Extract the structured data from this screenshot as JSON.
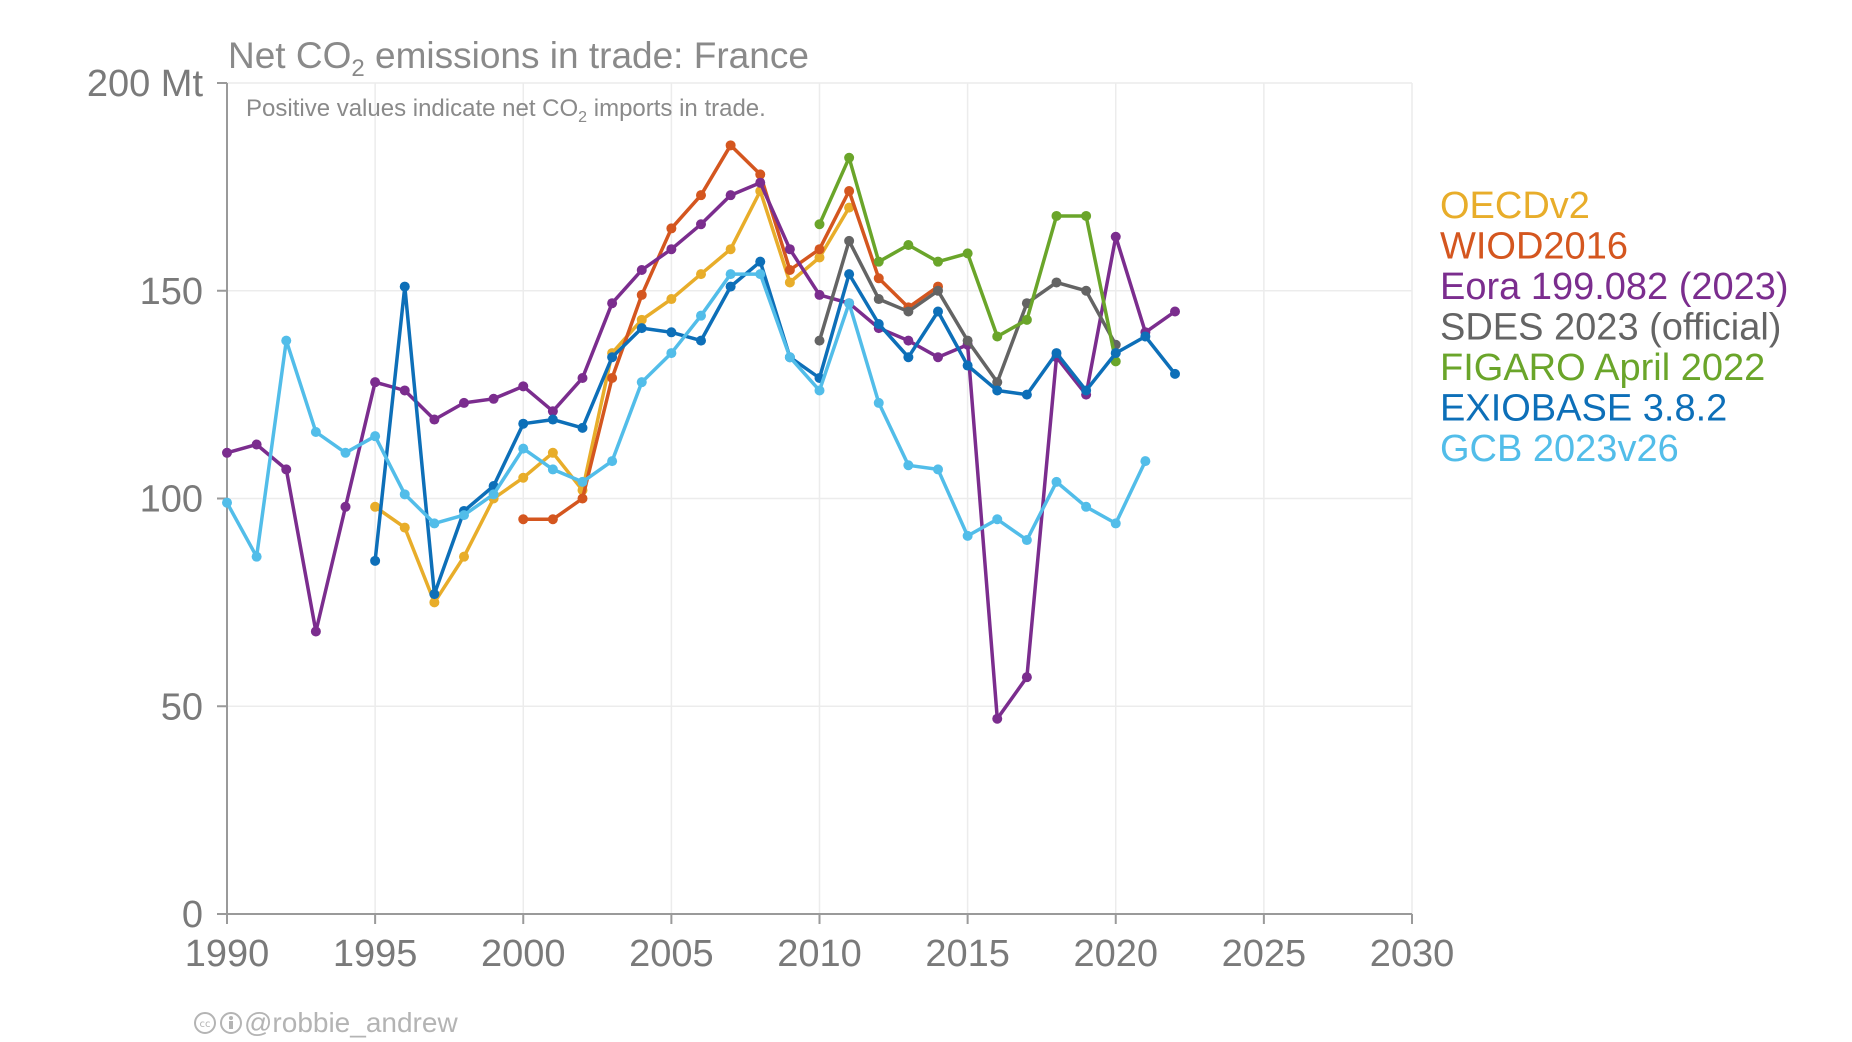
{
  "chart_data": {
    "type": "line",
    "title": "Net CO",
    "title_sub": "2",
    "title_rest": " emissions in trade: France",
    "subtitle": "Positive values indicate net CO",
    "subtitle_sub": "2",
    "subtitle_rest": " imports in trade.",
    "credit": "@robbie_andrew",
    "xlim": [
      1990,
      2030
    ],
    "ylim": [
      0,
      200
    ],
    "grid": true,
    "legend_position": "right",
    "x_ticks": [
      "1990",
      "1995",
      "2000",
      "2005",
      "2010",
      "2015",
      "2020",
      "2025",
      "2030"
    ],
    "y_ticks": [
      "0",
      "50",
      "100",
      "150",
      "200 Mt"
    ],
    "series": [
      {
        "name": "OECDv2",
        "color": "#e8ad2a",
        "x": [
          1995,
          1996,
          1997,
          1998,
          1999,
          2000,
          2001,
          2002,
          2003,
          2004,
          2005,
          2006,
          2007,
          2008,
          2009,
          2010,
          2011
        ],
        "y": [
          98,
          93,
          75,
          86,
          100,
          105,
          111,
          102,
          135,
          143,
          148,
          154,
          160,
          174,
          152,
          158,
          170
        ]
      },
      {
        "name": "WIOD2016",
        "color": "#d4561f",
        "x": [
          2000,
          2001,
          2002,
          2003,
          2004,
          2005,
          2006,
          2007,
          2008,
          2009,
          2010,
          2011,
          2012,
          2013,
          2014
        ],
        "y": [
          95,
          95,
          100,
          129,
          149,
          165,
          173,
          185,
          178,
          155,
          160,
          174,
          153,
          146,
          151
        ]
      },
      {
        "name": "Eora 199.082 (2023)",
        "color": "#7b2d8e",
        "x": [
          1990,
          1991,
          1992,
          1993,
          1994,
          1995,
          1996,
          1997,
          1998,
          1999,
          2000,
          2001,
          2002,
          2003,
          2004,
          2005,
          2006,
          2007,
          2008,
          2009,
          2010,
          2011,
          2012,
          2013,
          2014,
          2015,
          2016,
          2017,
          2018,
          2019,
          2020,
          2021,
          2022
        ],
        "y": [
          111,
          113,
          107,
          68,
          98,
          128,
          126,
          119,
          123,
          124,
          127,
          121,
          129,
          147,
          155,
          160,
          166,
          173,
          176,
          160,
          149,
          147,
          141,
          138,
          134,
          137,
          47,
          57,
          134,
          125,
          163,
          140,
          145
        ]
      },
      {
        "name": "SDES 2023 (official)",
        "color": "#646464",
        "x": [
          2010,
          2011,
          2012,
          2013,
          2014,
          2015,
          2016,
          2017,
          2018,
          2019,
          2020
        ],
        "y": [
          138,
          162,
          148,
          145,
          150,
          138,
          128,
          147,
          152,
          150,
          137
        ]
      },
      {
        "name": "FIGARO April 2022",
        "color": "#6aa52a",
        "x": [
          2010,
          2011,
          2012,
          2013,
          2014,
          2015,
          2016,
          2017,
          2018,
          2019,
          2020
        ],
        "y": [
          166,
          182,
          157,
          161,
          157,
          159,
          139,
          143,
          168,
          168,
          133
        ]
      },
      {
        "name": "EXIOBASE 3.8.2",
        "color": "#0d6fb8",
        "x": [
          1995,
          1996,
          1997,
          1998,
          1999,
          2000,
          2001,
          2002,
          2003,
          2004,
          2005,
          2006,
          2007,
          2008,
          2009,
          2010,
          2011,
          2012,
          2013,
          2014,
          2015,
          2016,
          2017,
          2018,
          2019,
          2020,
          2021,
          2022
        ],
        "y": [
          85,
          151,
          77,
          97,
          103,
          118,
          119,
          117,
          134,
          141,
          140,
          138,
          151,
          157,
          134,
          129,
          154,
          142,
          134,
          145,
          132,
          126,
          125,
          135,
          126,
          135,
          139,
          130
        ]
      },
      {
        "name": "GCB 2023v26",
        "color": "#52bde9",
        "x": [
          1990,
          1991,
          1992,
          1993,
          1994,
          1995,
          1996,
          1997,
          1998,
          1999,
          2000,
          2001,
          2002,
          2003,
          2004,
          2005,
          2006,
          2007,
          2008,
          2009,
          2010,
          2011,
          2012,
          2013,
          2014,
          2015,
          2016,
          2017,
          2018,
          2019,
          2020,
          2021
        ],
        "y": [
          99,
          86,
          138,
          116,
          111,
          115,
          101,
          94,
          96,
          101,
          112,
          107,
          104,
          109,
          128,
          135,
          144,
          154,
          154,
          134,
          126,
          147,
          123,
          108,
          107,
          91,
          95,
          90,
          104,
          98,
          94,
          109
        ]
      }
    ]
  }
}
